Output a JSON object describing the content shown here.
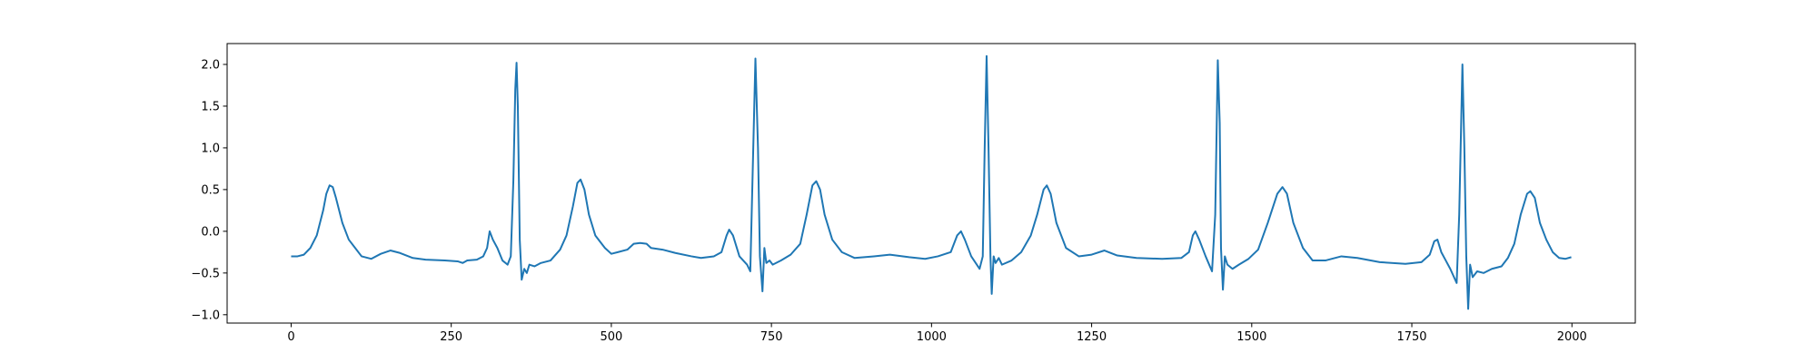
{
  "chart_data": {
    "type": "line",
    "color": "#1f77b4",
    "x": [
      0,
      10,
      20,
      30,
      40,
      50,
      55,
      60,
      65,
      70,
      80,
      90,
      100,
      110,
      125,
      140,
      155,
      170,
      190,
      210,
      240,
      260,
      268,
      275,
      290,
      300,
      306,
      310,
      315,
      322,
      330,
      338,
      343,
      347,
      350,
      352,
      354,
      357,
      360,
      364,
      368,
      372,
      380,
      390,
      405,
      420,
      430,
      440,
      447,
      452,
      458,
      465,
      475,
      490,
      500,
      510,
      525,
      535,
      545,
      555,
      562,
      580,
      600,
      625,
      640,
      660,
      672,
      680,
      684,
      690,
      700,
      712,
      717,
      721,
      725,
      729,
      732,
      736,
      739,
      742,
      747,
      752,
      765,
      780,
      795,
      805,
      814,
      820,
      826,
      833,
      845,
      860,
      880,
      910,
      935,
      965,
      990,
      1010,
      1030,
      1040,
      1046,
      1052,
      1062,
      1075,
      1080,
      1083,
      1086,
      1089,
      1092,
      1094,
      1097,
      1100,
      1105,
      1110,
      1125,
      1140,
      1155,
      1165,
      1175,
      1180,
      1186,
      1195,
      1210,
      1230,
      1250,
      1270,
      1290,
      1320,
      1360,
      1390,
      1402,
      1408,
      1412,
      1418,
      1428,
      1438,
      1443,
      1447,
      1450,
      1452,
      1455,
      1458,
      1462,
      1470,
      1480,
      1495,
      1510,
      1525,
      1540,
      1548,
      1555,
      1565,
      1580,
      1595,
      1615,
      1640,
      1665,
      1700,
      1740,
      1765,
      1778,
      1785,
      1790,
      1796,
      1803,
      1810,
      1820,
      1824,
      1829,
      1832,
      1835,
      1838,
      1841,
      1845,
      1852,
      1862,
      1875,
      1890,
      1900,
      1910,
      1920,
      1930,
      1935,
      1942,
      1950,
      1960,
      1970,
      1980,
      1990,
      1999
    ],
    "values": [
      -0.3,
      -0.3,
      -0.28,
      -0.2,
      -0.05,
      0.25,
      0.45,
      0.55,
      0.53,
      0.4,
      0.1,
      -0.1,
      -0.2,
      -0.3,
      -0.33,
      -0.27,
      -0.23,
      -0.26,
      -0.32,
      -0.34,
      -0.35,
      -0.36,
      -0.38,
      -0.35,
      -0.34,
      -0.3,
      -0.2,
      0.0,
      -0.1,
      -0.2,
      -0.35,
      -0.4,
      -0.3,
      0.6,
      1.7,
      2.02,
      1.5,
      -0.1,
      -0.58,
      -0.45,
      -0.5,
      -0.4,
      -0.42,
      -0.38,
      -0.35,
      -0.22,
      -0.05,
      0.3,
      0.58,
      0.62,
      0.5,
      0.2,
      -0.05,
      -0.2,
      -0.27,
      -0.25,
      -0.22,
      -0.15,
      -0.14,
      -0.15,
      -0.2,
      -0.22,
      -0.26,
      -0.3,
      -0.32,
      -0.3,
      -0.25,
      -0.05,
      0.02,
      -0.05,
      -0.3,
      -0.4,
      -0.48,
      0.8,
      2.07,
      1.0,
      -0.3,
      -0.72,
      -0.2,
      -0.38,
      -0.35,
      -0.4,
      -0.35,
      -0.28,
      -0.15,
      0.2,
      0.55,
      0.6,
      0.5,
      0.2,
      -0.1,
      -0.25,
      -0.32,
      -0.3,
      -0.28,
      -0.31,
      -0.33,
      -0.3,
      -0.25,
      -0.05,
      0.0,
      -0.1,
      -0.3,
      -0.45,
      -0.3,
      1.0,
      2.1,
      1.0,
      -0.3,
      -0.75,
      -0.3,
      -0.38,
      -0.32,
      -0.4,
      -0.35,
      -0.25,
      -0.05,
      0.2,
      0.5,
      0.55,
      0.45,
      0.1,
      -0.2,
      -0.3,
      -0.28,
      -0.23,
      -0.29,
      -0.32,
      -0.33,
      -0.32,
      -0.25,
      -0.05,
      0.0,
      -0.1,
      -0.3,
      -0.48,
      0.2,
      2.05,
      1.3,
      -0.2,
      -0.7,
      -0.3,
      -0.4,
      -0.45,
      -0.4,
      -0.33,
      -0.22,
      0.1,
      0.45,
      0.53,
      0.45,
      0.1,
      -0.2,
      -0.35,
      -0.35,
      -0.3,
      -0.32,
      -0.37,
      -0.39,
      -0.37,
      -0.28,
      -0.12,
      -0.1,
      -0.25,
      -0.35,
      -0.45,
      -0.62,
      0.2,
      2.0,
      1.0,
      -0.3,
      -0.93,
      -0.4,
      -0.55,
      -0.48,
      -0.5,
      -0.45,
      -0.42,
      -0.32,
      -0.15,
      0.2,
      0.45,
      0.48,
      0.4,
      0.1,
      -0.1,
      -0.25,
      -0.32,
      -0.33,
      -0.31
    ],
    "xlim": [
      -99.95,
      2098.95
    ],
    "ylim": [
      -1.1,
      2.25
    ],
    "xticks": [
      0,
      250,
      500,
      750,
      1000,
      1250,
      1500,
      1750,
      2000
    ],
    "yticks": [
      {
        "value": -1,
        "label": "−1.0"
      },
      {
        "value": -0.5,
        "label": "−0.5"
      },
      {
        "value": 0,
        "label": "0.0"
      },
      {
        "value": 0.5,
        "label": "0.5"
      },
      {
        "value": 1,
        "label": "1.0"
      },
      {
        "value": 1.5,
        "label": "1.5"
      },
      {
        "value": 2,
        "label": "2.0"
      }
    ]
  }
}
